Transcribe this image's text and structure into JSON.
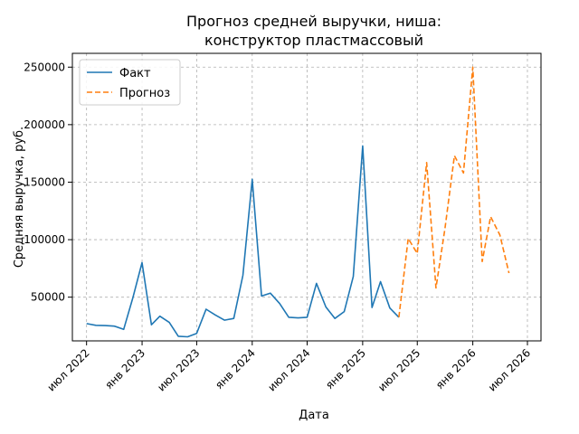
{
  "chart_data": {
    "type": "line",
    "title": [
      "Прогноз средней выручки, ниша:",
      "конструктор пластмассовый"
    ],
    "xlabel": "Дата",
    "ylabel": "Средняя выручка, руб.",
    "grid": true,
    "legend_position": "top-left",
    "x_ticks": [
      {
        "date": "2022-07-01",
        "label": "июл 2022"
      },
      {
        "date": "2023-01-01",
        "label": "янв 2023"
      },
      {
        "date": "2023-07-01",
        "label": "июл 2023"
      },
      {
        "date": "2024-01-01",
        "label": "янв 2024"
      },
      {
        "date": "2024-07-01",
        "label": "июл 2024"
      },
      {
        "date": "2025-01-01",
        "label": "янв 2025"
      },
      {
        "date": "2025-07-01",
        "label": "июл 2025"
      },
      {
        "date": "2026-01-01",
        "label": "янв 2026"
      },
      {
        "date": "2026-07-01",
        "label": "июл 2026"
      }
    ],
    "y_ticks": [
      {
        "value": 50000,
        "label": "50000"
      },
      {
        "value": 100000,
        "label": "100000"
      },
      {
        "value": 150000,
        "label": "150000"
      },
      {
        "value": 200000,
        "label": "200000"
      },
      {
        "value": 250000,
        "label": "250000"
      }
    ],
    "xlim": [
      "2022-05-15",
      "2026-08-15"
    ],
    "ylim": [
      12000,
      262000
    ],
    "series": [
      {
        "name": "Факт",
        "color": "#1f77b4",
        "style": "solid",
        "points": [
          {
            "x": "2022-07-01",
            "y": 27000
          },
          {
            "x": "2022-08-01",
            "y": 25500
          },
          {
            "x": "2022-09-01",
            "y": 25300
          },
          {
            "x": "2022-10-01",
            "y": 24800
          },
          {
            "x": "2022-11-01",
            "y": 22000
          },
          {
            "x": "2022-12-01",
            "y": 49000
          },
          {
            "x": "2023-01-01",
            "y": 80000
          },
          {
            "x": "2023-02-01",
            "y": 26000
          },
          {
            "x": "2023-03-01",
            "y": 33500
          },
          {
            "x": "2023-04-01",
            "y": 28000
          },
          {
            "x": "2023-05-01",
            "y": 16000
          },
          {
            "x": "2023-06-01",
            "y": 15500
          },
          {
            "x": "2023-07-01",
            "y": 18500
          },
          {
            "x": "2023-08-01",
            "y": 39500
          },
          {
            "x": "2023-09-01",
            "y": 34500
          },
          {
            "x": "2023-10-01",
            "y": 30000
          },
          {
            "x": "2023-11-01",
            "y": 31500
          },
          {
            "x": "2023-12-01",
            "y": 69000
          },
          {
            "x": "2024-01-01",
            "y": 152500
          },
          {
            "x": "2024-02-01",
            "y": 51000
          },
          {
            "x": "2024-03-01",
            "y": 53500
          },
          {
            "x": "2024-04-01",
            "y": 44500
          },
          {
            "x": "2024-05-01",
            "y": 32500
          },
          {
            "x": "2024-06-01",
            "y": 32000
          },
          {
            "x": "2024-07-01",
            "y": 32500
          },
          {
            "x": "2024-08-01",
            "y": 62000
          },
          {
            "x": "2024-09-01",
            "y": 41500
          },
          {
            "x": "2024-10-01",
            "y": 31500
          },
          {
            "x": "2024-11-01",
            "y": 37500
          },
          {
            "x": "2024-12-01",
            "y": 68000
          },
          {
            "x": "2025-01-01",
            "y": 181500
          },
          {
            "x": "2025-02-01",
            "y": 41000
          },
          {
            "x": "2025-03-01",
            "y": 63500
          },
          {
            "x": "2025-04-01",
            "y": 40500
          },
          {
            "x": "2025-05-01",
            "y": 32500
          }
        ]
      },
      {
        "name": "Прогноз",
        "color": "#ff7f0e",
        "style": "dashed",
        "points": [
          {
            "x": "2025-05-01",
            "y": 32500
          },
          {
            "x": "2025-06-01",
            "y": 101000
          },
          {
            "x": "2025-07-01",
            "y": 88000
          },
          {
            "x": "2025-08-01",
            "y": 167000
          },
          {
            "x": "2025-09-01",
            "y": 58000
          },
          {
            "x": "2025-10-01",
            "y": 110000
          },
          {
            "x": "2025-11-01",
            "y": 173000
          },
          {
            "x": "2025-12-01",
            "y": 158000
          },
          {
            "x": "2026-01-01",
            "y": 250000
          },
          {
            "x": "2026-02-01",
            "y": 81000
          },
          {
            "x": "2026-03-01",
            "y": 120000
          },
          {
            "x": "2026-04-01",
            "y": 104000
          },
          {
            "x": "2026-05-01",
            "y": 71000
          }
        ]
      }
    ]
  }
}
